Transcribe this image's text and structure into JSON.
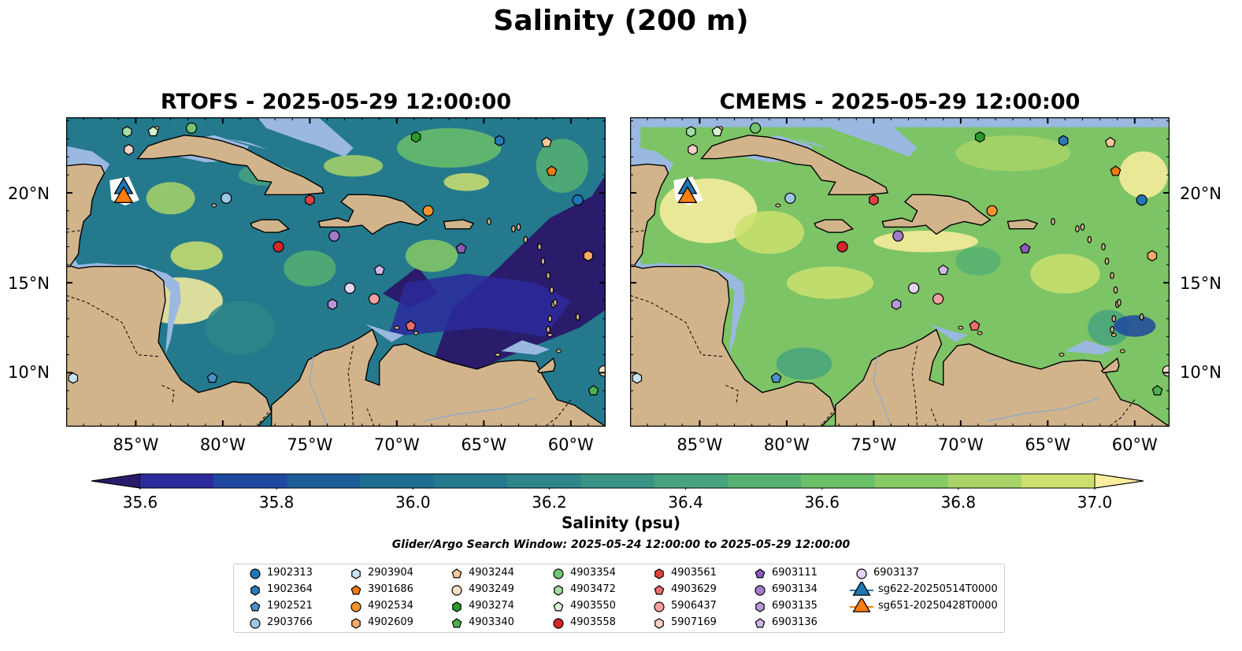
{
  "title": "Salinity (200 m)",
  "panels": [
    {
      "title": "RTOFS - 2025-05-29 12:00:00",
      "variant": "rtofs"
    },
    {
      "title": "CMEMS - 2025-05-29 12:00:00",
      "variant": "cmems"
    }
  ],
  "axes": {
    "lon_ticks": [
      "85°W",
      "80°W",
      "75°W",
      "70°W",
      "65°W",
      "60°W"
    ],
    "lon_values": [
      -85,
      -80,
      -75,
      -70,
      -65,
      -60
    ],
    "lat_ticks": [
      "20°N",
      "15°N",
      "10°N"
    ],
    "lat_values": [
      20,
      15,
      10
    ],
    "lon_range": [
      -89,
      -58
    ],
    "lat_range": [
      7,
      24.2
    ]
  },
  "colorbar": {
    "label": "Salinity (psu)",
    "ticks": [
      "35.6",
      "35.8",
      "36.0",
      "36.2",
      "36.4",
      "36.6",
      "36.8",
      "37.0"
    ],
    "tick_values": [
      35.6,
      35.8,
      36.0,
      36.2,
      36.4,
      36.6,
      36.8,
      37.0
    ],
    "range": [
      35.6,
      37.0
    ],
    "colors": [
      "#2a1b6b",
      "#2c2a9b",
      "#1f48a0",
      "#1b5e97",
      "#1e6e91",
      "#25798d",
      "#2e868a",
      "#3a9485",
      "#47a37c",
      "#56b071",
      "#6abf69",
      "#87c965",
      "#a8d467",
      "#cde06d",
      "#fbeea0"
    ]
  },
  "search_window": "Glider/Argo Search Window: 2025-05-24 12:00:00 to 2025-05-29 12:00:00",
  "legend": [
    {
      "label": "1902313",
      "marker": "circle",
      "color": "#1f77b4"
    },
    {
      "label": "1902364",
      "marker": "hexagon",
      "color": "#2a7ab8"
    },
    {
      "label": "1902521",
      "marker": "pentagon",
      "color": "#4b92c8"
    },
    {
      "label": "2903766",
      "marker": "circle",
      "color": "#9ec6e6"
    },
    {
      "label": "2903904",
      "marker": "hexagon",
      "color": "#c7e3f2"
    },
    {
      "label": "3901686",
      "marker": "pentagon",
      "color": "#f07a10"
    },
    {
      "label": "4902534",
      "marker": "circle",
      "color": "#f5922e"
    },
    {
      "label": "4902609",
      "marker": "hexagon",
      "color": "#f8ab68"
    },
    {
      "label": "4903244",
      "marker": "pentagon",
      "color": "#fbc89a"
    },
    {
      "label": "4903249",
      "marker": "circle",
      "color": "#fde0c8"
    },
    {
      "label": "4903274",
      "marker": "hexagon",
      "color": "#2a9a2a"
    },
    {
      "label": "4903340",
      "marker": "pentagon",
      "color": "#4cb04c"
    },
    {
      "label": "4903354",
      "marker": "circle",
      "color": "#74c474"
    },
    {
      "label": "4903472",
      "marker": "hexagon",
      "color": "#a5dca5"
    },
    {
      "label": "4903550",
      "marker": "pentagon",
      "color": "#d8f2d2"
    },
    {
      "label": "4903558",
      "marker": "circle",
      "color": "#d62728"
    },
    {
      "label": "4903561",
      "marker": "hexagon",
      "color": "#e04040"
    },
    {
      "label": "4903629",
      "marker": "pentagon",
      "color": "#ec6e6e"
    },
    {
      "label": "5906437",
      "marker": "circle",
      "color": "#f4a0a0"
    },
    {
      "label": "5907169",
      "marker": "hexagon",
      "color": "#fcd0cc"
    },
    {
      "label": "6903111",
      "marker": "pentagon",
      "color": "#8a5bb8"
    },
    {
      "label": "6903134",
      "marker": "circle",
      "color": "#a07cc8"
    },
    {
      "label": "6903135",
      "marker": "hexagon",
      "color": "#b898d8"
    },
    {
      "label": "6903136",
      "marker": "pentagon",
      "color": "#d0b8e8"
    },
    {
      "label": "6903137",
      "marker": "circle",
      "color": "#e8d4f4"
    },
    {
      "label": "sg622-20250514T0000",
      "marker": "triangle",
      "color": "#1f77b4"
    },
    {
      "label": "sg651-20250428T0000",
      "marker": "triangle",
      "color": "#ff7f0e"
    }
  ],
  "floats": [
    {
      "id": "1902313",
      "lon": -59.6,
      "lat": 19.6
    },
    {
      "id": "1902364",
      "lon": -64.1,
      "lat": 22.9
    },
    {
      "id": "1902521",
      "lon": -80.6,
      "lat": 9.7
    },
    {
      "id": "2903766",
      "lon": -79.8,
      "lat": 19.7
    },
    {
      "id": "2903904",
      "lon": -88.6,
      "lat": 9.7
    },
    {
      "id": "3901686",
      "lon": -61.1,
      "lat": 21.2
    },
    {
      "id": "4902534",
      "lon": -68.2,
      "lat": 19.0
    },
    {
      "id": "4902609",
      "lon": -59.0,
      "lat": 16.5
    },
    {
      "id": "4903244",
      "lon": -61.4,
      "lat": 22.8
    },
    {
      "id": "4903249",
      "lon": -58.1,
      "lat": 10.1
    },
    {
      "id": "4903274",
      "lon": -68.9,
      "lat": 23.1
    },
    {
      "id": "4903340",
      "lon": -58.7,
      "lat": 9.0
    },
    {
      "id": "4903354",
      "lon": -81.8,
      "lat": 23.6
    },
    {
      "id": "4903472",
      "lon": -85.5,
      "lat": 23.4
    },
    {
      "id": "4903550",
      "lon": -84.0,
      "lat": 23.4
    },
    {
      "id": "4903558",
      "lon": -76.8,
      "lat": 17.0
    },
    {
      "id": "4903561",
      "lon": -75.0,
      "lat": 19.6
    },
    {
      "id": "4903629",
      "lon": -69.2,
      "lat": 12.6
    },
    {
      "id": "5906437",
      "lon": -71.3,
      "lat": 14.1
    },
    {
      "id": "5907169",
      "lon": -85.4,
      "lat": 22.4
    },
    {
      "id": "6903111",
      "lon": -66.3,
      "lat": 16.9
    },
    {
      "id": "6903134",
      "lon": -73.6,
      "lat": 17.6
    },
    {
      "id": "6903135",
      "lon": -73.7,
      "lat": 13.8
    },
    {
      "id": "6903136",
      "lon": -71.0,
      "lat": 15.7
    },
    {
      "id": "6903137",
      "lon": -72.7,
      "lat": 14.7
    }
  ],
  "gliders": [
    {
      "id": "sg622-20250514T0000",
      "lon": -85.7,
      "lat": 20.3
    },
    {
      "id": "sg651-20250428T0000",
      "lon": -85.7,
      "lat": 19.8
    }
  ]
}
